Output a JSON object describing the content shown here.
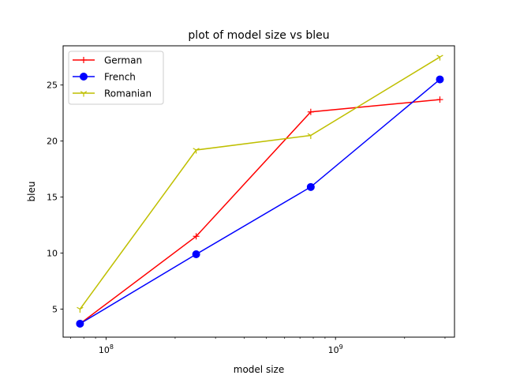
{
  "chart_data": {
    "type": "line",
    "title": "plot of model size vs bleu",
    "xlabel": "model size",
    "ylabel": "bleu",
    "x_scale": "log",
    "xlim": [
      65000000,
      3300000000
    ],
    "ylim": [
      2.5,
      28.5
    ],
    "x_ticks": [
      {
        "value": 100000000,
        "label": "10^8"
      },
      {
        "value": 1000000000,
        "label": "10^9"
      }
    ],
    "y_ticks": [
      5,
      10,
      15,
      20,
      25
    ],
    "x": [
      77000000,
      247000000,
      780000000,
      2850000000
    ],
    "series": [
      {
        "name": "German",
        "values": [
          3.7,
          11.5,
          22.6,
          23.7
        ],
        "color": "#ff0000",
        "marker": "+"
      },
      {
        "name": "French",
        "values": [
          3.7,
          9.9,
          15.9,
          25.5
        ],
        "color": "#0000ff",
        "marker": "o"
      },
      {
        "name": "Romanian",
        "values": [
          5.0,
          19.2,
          20.5,
          27.5
        ],
        "color": "#bfbf00",
        "marker": "tri_down"
      }
    ],
    "legend_position": "top-left",
    "grid": false
  }
}
